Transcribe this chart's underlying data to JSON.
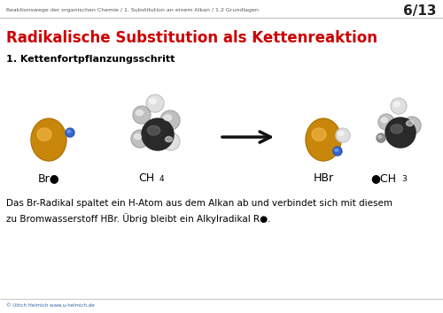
{
  "bg_color": "#ffffff",
  "header_line_text": "Reaktionswege der organischen Chemie / 1. Substitution an einem Alkan / 1.2 Grundlagen",
  "header_page": "6/13",
  "title": "Radikalische Substitution als Kettenreaktion",
  "subtitle": "1. Kettenfortpflanzungsschritt",
  "body_text_line1": "Das Br-Radikal spaltet ein H-Atom aus dem Alkan ab und verbindet sich mit diesem",
  "body_text_line2": "zu Bromwasserstoff HBr. Übrig bleibt ein Alkylradikal R●.",
  "footer_text": "© Ulrich Helmich www.u-helmich.de",
  "label_br": "Br●",
  "label_ch4_main": "CH",
  "label_ch4_sub": "4",
  "label_hbr": "HBr",
  "label_ch3_main": "●CH",
  "label_ch3_sub": "3",
  "color_br_atom": "#C8860A",
  "color_c_atom": "#2A2A2A",
  "color_blue_dot": "#3366CC",
  "color_gray_light": "#C0C0C0",
  "color_gray_medium": "#909090",
  "color_gray_lighter": "#E0E0E0",
  "color_arrow": "#111111",
  "title_color": "#CC0000",
  "header_color": "#555555",
  "separator_color": "#999999",
  "footer_color": "#3366AA"
}
